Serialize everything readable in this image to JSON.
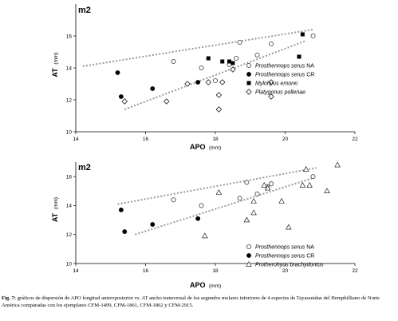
{
  "chart_data": [
    {
      "type": "scatter",
      "title": "m2",
      "xlabel": "APO",
      "xunit": "(mm)",
      "ylabel": "AT",
      "yunit": "(mm)",
      "xlim": [
        14,
        22
      ],
      "ylim": [
        10,
        18
      ],
      "xticks": [
        14,
        16,
        18,
        20,
        22
      ],
      "yticks": [
        10,
        12,
        14,
        16
      ],
      "grid": false,
      "legend_position": "bottom-right",
      "series": [
        {
          "name": "Prosthennops serus",
          "suffix": "NA",
          "marker": "circle-open",
          "color": "#a8a8a8",
          "x": [
            16.8,
            17.6,
            18.0,
            18.4,
            18.6,
            18.7,
            19.2,
            19.6,
            20.8
          ],
          "y": [
            14.4,
            14.0,
            13.2,
            14.2,
            14.6,
            15.6,
            14.8,
            15.5,
            16.0
          ]
        },
        {
          "name": "Prosthennops serus",
          "suffix": "CR",
          "marker": "circle-filled",
          "color": "#000000",
          "x": [
            15.2,
            15.3,
            16.2,
            17.5
          ],
          "y": [
            13.7,
            12.2,
            12.7,
            13.1
          ]
        },
        {
          "name": "Mylohyus emorei",
          "suffix": "",
          "marker": "square-filled",
          "color": "#000000",
          "x": [
            17.8,
            18.2,
            18.4,
            18.5,
            20.4,
            20.5
          ],
          "y": [
            14.6,
            14.4,
            14.4,
            14.3,
            14.7,
            16.1
          ]
        },
        {
          "name": "Platygonus pollenae",
          "suffix": "",
          "marker": "diamond-open",
          "color": "#000000",
          "x": [
            15.4,
            16.6,
            17.2,
            17.8,
            18.1,
            18.1,
            18.2,
            18.5,
            19.6,
            19.6
          ],
          "y": [
            11.9,
            11.9,
            13.0,
            13.1,
            12.3,
            11.4,
            13.1,
            13.9,
            13.1,
            12.2
          ]
        }
      ],
      "confidence_lines": [
        {
          "x": [
            14.2,
            20.8
          ],
          "y": [
            14.1,
            16.4
          ]
        },
        {
          "x": [
            15.4,
            20.6
          ],
          "y": [
            11.4,
            15.7
          ]
        }
      ]
    },
    {
      "type": "scatter",
      "title": "m2",
      "xlabel": "APO",
      "xunit": "(mm)",
      "ylabel": "AT",
      "yunit": "(mm)",
      "xlim": [
        14,
        22
      ],
      "ylim": [
        10,
        17
      ],
      "xticks": [
        14,
        16,
        18,
        20,
        22
      ],
      "yticks": [
        10,
        12,
        14,
        16
      ],
      "grid": false,
      "legend_position": "bottom-right",
      "series": [
        {
          "name": "Prosthennops serus",
          "suffix": "NA",
          "marker": "circle-open",
          "color": "#a8a8a8",
          "x": [
            16.8,
            17.6,
            18.7,
            18.9,
            19.2,
            19.5,
            19.6,
            20.8
          ],
          "y": [
            14.4,
            14.0,
            14.5,
            15.6,
            14.8,
            15.3,
            15.5,
            16.0
          ]
        },
        {
          "name": "Prosthennops serus",
          "suffix": "CR",
          "marker": "circle-filled",
          "color": "#000000",
          "x": [
            15.3,
            15.4,
            16.2,
            17.5
          ],
          "y": [
            13.7,
            12.2,
            12.7,
            13.1
          ]
        },
        {
          "name": "Protherohyus brachydontus",
          "suffix": "",
          "marker": "triangle-open",
          "color": "#000000",
          "x": [
            17.7,
            18.1,
            18.9,
            19.1,
            19.1,
            19.4,
            19.5,
            19.9,
            20.1,
            20.5,
            20.6,
            20.7,
            21.2,
            21.5
          ],
          "y": [
            11.9,
            14.9,
            13.0,
            13.5,
            14.3,
            15.4,
            15.2,
            14.3,
            12.5,
            15.4,
            16.5,
            15.4,
            15.0,
            16.8
          ]
        }
      ],
      "confidence_lines": [
        {
          "x": [
            15.2,
            20.9
          ],
          "y": [
            14.1,
            16.6
          ]
        },
        {
          "x": [
            15.7,
            20.8
          ],
          "y": [
            12.0,
            15.9
          ]
        }
      ]
    }
  ],
  "caption": {
    "label": "Fig. 7:",
    "text": "gráficos de dispersión de APO longitud anteroposterior vs. AT ancho transversal de los segundos molares inferiores de 4 especies de Tayassuidae del Hemphilliano de Norte América comparadas con los ejemplares CFM-1499, CFM-1861, CFM-1862 y CFM-2915."
  }
}
